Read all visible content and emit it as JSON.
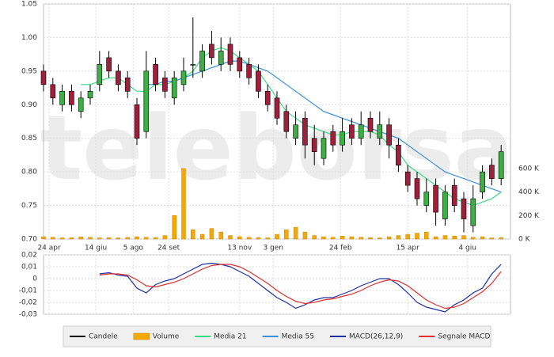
{
  "watermark": "teleborsa",
  "chart_data": [
    {
      "type": "candlestick",
      "x": [
        0,
        5,
        10,
        15,
        20,
        25,
        30,
        35,
        40,
        45,
        50,
        55,
        60,
        65,
        70,
        75,
        80,
        85,
        90,
        95,
        100,
        105,
        110,
        115,
        120,
        125,
        130,
        135,
        140,
        145,
        150,
        155,
        160,
        165,
        170,
        175,
        180,
        185,
        190,
        195,
        200,
        205,
        210,
        215,
        220,
        225,
        230,
        235,
        240,
        245
      ],
      "xlim": [
        0,
        250
      ],
      "xticks": [
        {
          "value": 3,
          "label": "24 apr"
        },
        {
          "value": 28,
          "label": "14 giu"
        },
        {
          "value": 48,
          "label": "5 ago"
        },
        {
          "value": 67,
          "label": "24 set"
        },
        {
          "value": 105,
          "label": "13 nov"
        },
        {
          "value": 123,
          "label": "3 gen"
        },
        {
          "value": 159,
          "label": "24 feb"
        },
        {
          "value": 195,
          "label": "15 apr"
        },
        {
          "value": 227,
          "label": "4 giu"
        }
      ],
      "ylim": [
        0.7,
        1.05
      ],
      "yticks": [
        1.05,
        {
          "value": 1,
          "label": "1.00"
        },
        0.95,
        {
          "value": 0.9,
          "label": "0.90"
        },
        0.85,
        {
          "value": 0.8,
          "label": "0.80"
        },
        0.75,
        {
          "value": 0.7,
          "label": "0.70"
        }
      ],
      "y2lim": [
        0,
        2000000
      ],
      "y2ticks": [
        {
          "value": 0,
          "label": "0 K"
        },
        {
          "value": 200000,
          "label": "200 K"
        },
        {
          "value": 400000,
          "label": "400 K"
        },
        {
          "value": 600000,
          "label": "600 K"
        }
      ],
      "series": [
        {
          "name": "Candele",
          "color": "#000000",
          "up_color": "#3cb043",
          "down_color": "#a0203c",
          "open": [
            0.95,
            0.93,
            0.9,
            0.92,
            0.89,
            0.91,
            0.93,
            0.97,
            0.95,
            0.94,
            0.9,
            0.86,
            0.96,
            0.94,
            0.91,
            0.93,
            0.96,
            0.95,
            0.99,
            0.96,
            0.99,
            0.97,
            0.96,
            0.95,
            0.92,
            0.91,
            0.89,
            0.85,
            0.88,
            0.85,
            0.82,
            0.86,
            0.84,
            0.87,
            0.85,
            0.88,
            0.85,
            0.87,
            0.84,
            0.8,
            0.79,
            0.75,
            0.78,
            0.73,
            0.78,
            0.76,
            0.72,
            0.77,
            0.81,
            0.79
          ],
          "high": [
            0.96,
            0.94,
            0.93,
            0.93,
            0.92,
            0.93,
            0.98,
            0.98,
            0.96,
            0.95,
            0.91,
            0.98,
            0.97,
            0.95,
            0.95,
            0.97,
            1.03,
            0.99,
            1.01,
            1.0,
            1.0,
            0.98,
            0.97,
            0.96,
            0.93,
            0.92,
            0.9,
            0.89,
            0.89,
            0.87,
            0.86,
            0.87,
            0.88,
            0.88,
            0.89,
            0.89,
            0.89,
            0.88,
            0.85,
            0.81,
            0.8,
            0.79,
            0.79,
            0.78,
            0.79,
            0.77,
            0.78,
            0.81,
            0.82,
            0.84
          ],
          "low": [
            0.92,
            0.9,
            0.89,
            0.89,
            0.88,
            0.9,
            0.92,
            0.94,
            0.92,
            0.91,
            0.84,
            0.85,
            0.92,
            0.91,
            0.9,
            0.92,
            0.94,
            0.94,
            0.96,
            0.95,
            0.95,
            0.94,
            0.93,
            0.91,
            0.89,
            0.87,
            0.85,
            0.84,
            0.82,
            0.81,
            0.81,
            0.83,
            0.83,
            0.84,
            0.84,
            0.85,
            0.84,
            0.82,
            0.8,
            0.77,
            0.75,
            0.74,
            0.72,
            0.72,
            0.74,
            0.71,
            0.71,
            0.76,
            0.78,
            0.78
          ],
          "close": [
            0.93,
            0.91,
            0.92,
            0.9,
            0.91,
            0.92,
            0.96,
            0.95,
            0.93,
            0.92,
            0.85,
            0.95,
            0.93,
            0.92,
            0.94,
            0.95,
            0.96,
            0.98,
            0.97,
            0.98,
            0.96,
            0.95,
            0.94,
            0.92,
            0.9,
            0.88,
            0.86,
            0.87,
            0.84,
            0.83,
            0.85,
            0.84,
            0.86,
            0.85,
            0.87,
            0.86,
            0.87,
            0.84,
            0.81,
            0.78,
            0.76,
            0.77,
            0.74,
            0.77,
            0.75,
            0.73,
            0.76,
            0.8,
            0.79,
            0.83
          ]
        },
        {
          "name": "Volume",
          "color": "#f5a800",
          "axis": "y2",
          "values": [
            20000,
            15000,
            10000,
            12000,
            18000,
            15000,
            10000,
            12000,
            10000,
            14000,
            20000,
            15000,
            12000,
            30000,
            200000,
            600000,
            80000,
            40000,
            90000,
            60000,
            30000,
            20000,
            15000,
            12000,
            10000,
            40000,
            80000,
            100000,
            60000,
            30000,
            20000,
            15000,
            25000,
            20000,
            15000,
            12000,
            10000,
            20000,
            30000,
            40000,
            50000,
            60000,
            20000,
            30000,
            25000,
            30000,
            15000,
            20000,
            10000,
            12000
          ]
        },
        {
          "name": "Media 21",
          "color": "#3ddc84",
          "values": [
            null,
            null,
            null,
            null,
            0.93,
            0.93,
            0.935,
            0.94,
            0.94,
            0.93,
            0.92,
            0.92,
            0.93,
            0.93,
            0.935,
            0.94,
            0.95,
            0.97,
            0.98,
            0.985,
            0.98,
            0.97,
            0.96,
            0.95,
            0.93,
            0.91,
            0.89,
            0.88,
            0.87,
            0.865,
            0.86,
            0.855,
            0.855,
            0.86,
            0.86,
            0.86,
            0.855,
            0.84,
            0.83,
            0.81,
            0.8,
            0.79,
            0.78,
            0.77,
            0.76,
            0.755,
            0.75,
            0.755,
            0.76,
            0.77
          ]
        },
        {
          "name": "Media 55",
          "color": "#3b8fd9",
          "values": [
            null,
            null,
            null,
            null,
            null,
            null,
            null,
            null,
            null,
            null,
            null,
            0.93,
            0.93,
            0.935,
            0.935,
            0.94,
            0.945,
            0.95,
            0.955,
            0.96,
            0.965,
            0.965,
            0.96,
            0.955,
            0.95,
            0.94,
            0.93,
            0.92,
            0.91,
            0.9,
            0.89,
            0.885,
            0.88,
            0.875,
            0.87,
            0.865,
            0.86,
            0.855,
            0.85,
            0.84,
            0.83,
            0.82,
            0.81,
            0.8,
            0.795,
            0.79,
            0.785,
            0.78,
            0.775,
            0.77
          ]
        }
      ]
    },
    {
      "type": "line",
      "x": [
        30,
        35,
        40,
        45,
        50,
        55,
        60,
        65,
        70,
        75,
        80,
        85,
        90,
        95,
        100,
        105,
        110,
        115,
        120,
        125,
        130,
        135,
        140,
        145,
        150,
        155,
        160,
        165,
        170,
        175,
        180,
        185,
        190,
        195,
        200,
        205,
        210,
        215,
        220,
        225,
        230,
        235,
        240,
        245
      ],
      "xlim": [
        0,
        250
      ],
      "ylim": [
        -0.03,
        0.02
      ],
      "yticks": [
        {
          "value": 0.02,
          "label": "0,02"
        },
        {
          "value": 0.01,
          "label": "0,01"
        },
        0,
        {
          "value": -0.01,
          "label": "-0,01"
        },
        {
          "value": -0.02,
          "label": "-0,02"
        },
        {
          "value": -0.03,
          "label": "-0,03"
        }
      ],
      "series": [
        {
          "name": "MACD(26,12,9)",
          "color": "#2030a0",
          "values": [
            0.004,
            0.005,
            0.003,
            0.002,
            -0.008,
            -0.012,
            -0.005,
            -0.002,
            0,
            0.004,
            0.008,
            0.012,
            0.013,
            0.012,
            0.01,
            0.006,
            0.002,
            -0.004,
            -0.01,
            -0.016,
            -0.02,
            -0.025,
            -0.022,
            -0.018,
            -0.016,
            -0.016,
            -0.013,
            -0.01,
            -0.006,
            -0.003,
            0,
            0,
            -0.005,
            -0.012,
            -0.02,
            -0.024,
            -0.026,
            -0.028,
            -0.022,
            -0.018,
            -0.012,
            -0.008,
            0.004,
            0.012
          ]
        },
        {
          "name": "Segnale MACD",
          "color": "#e03030",
          "values": [
            0.003,
            0.004,
            0.004,
            0.003,
            -0.001,
            -0.006,
            -0.007,
            -0.005,
            -0.003,
            0,
            0.004,
            0.008,
            0.011,
            0.012,
            0.012,
            0.01,
            0.006,
            0.001,
            -0.004,
            -0.01,
            -0.015,
            -0.019,
            -0.021,
            -0.02,
            -0.018,
            -0.017,
            -0.015,
            -0.013,
            -0.01,
            -0.006,
            -0.003,
            -0.001,
            -0.002,
            -0.006,
            -0.012,
            -0.018,
            -0.022,
            -0.025,
            -0.024,
            -0.021,
            -0.016,
            -0.011,
            -0.004,
            0.006
          ]
        }
      ]
    }
  ]
}
